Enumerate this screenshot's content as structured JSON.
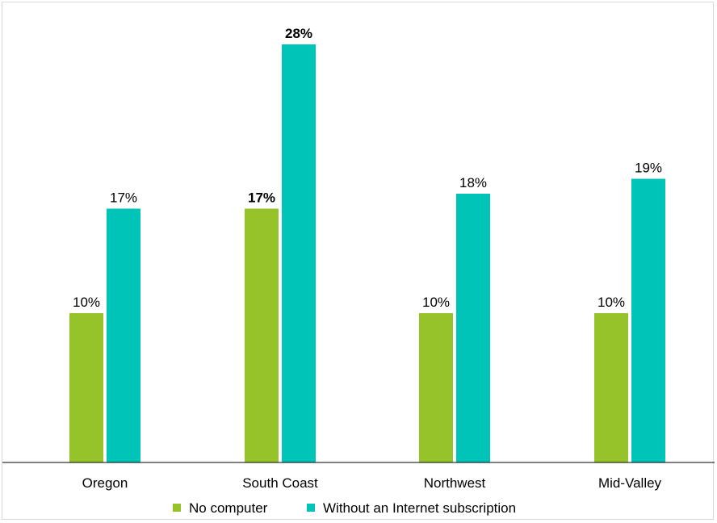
{
  "chart_data": {
    "type": "bar",
    "categories": [
      "Oregon",
      "South Coast",
      "Northwest",
      "Mid-Valley"
    ],
    "series": [
      {
        "name": "No computer",
        "color": "#96c22a",
        "values": [
          10,
          17,
          10,
          10
        ],
        "labels": [
          "10%",
          "17%",
          "10%",
          "10%"
        ]
      },
      {
        "name": "Without an Internet subscription",
        "color": "#00c4b8",
        "values": [
          17,
          28,
          18,
          19
        ],
        "labels": [
          "17%",
          "28%",
          "18%",
          "19%"
        ]
      }
    ],
    "highlighted_category": "South Coast",
    "value_unit": "%",
    "ylim": [
      0,
      30
    ],
    "y_axis_visible": false,
    "grid": false,
    "legend_position": "bottom"
  }
}
